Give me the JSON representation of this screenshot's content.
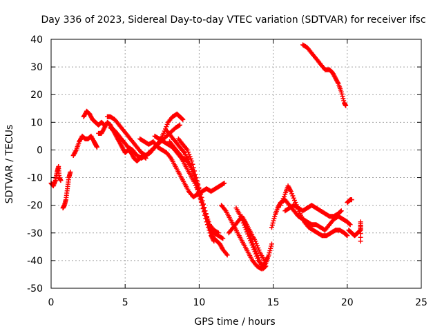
{
  "chart_data": {
    "type": "scatter",
    "title": "Day 336 of 2023, Sidereal Day-to-day VTEC variation (SDTVAR) for receiver ifsc",
    "xlabel": "GPS time / hours",
    "ylabel": "SDTVAR / TECUs",
    "xlim": [
      0,
      25
    ],
    "ylim": [
      -50,
      40
    ],
    "xticks": [
      0,
      5,
      10,
      15,
      20,
      25
    ],
    "yticks": [
      -50,
      -40,
      -30,
      -20,
      -10,
      0,
      10,
      20,
      30,
      40
    ],
    "grid": true,
    "marker": "+",
    "color": "#ff0000",
    "series": [
      {
        "name": "s01",
        "points": [
          [
            0.0,
            -12
          ],
          [
            0.15,
            -13
          ],
          [
            0.3,
            -11
          ],
          [
            0.4,
            -8
          ],
          [
            0.5,
            -6
          ],
          [
            0.55,
            -10
          ],
          [
            0.65,
            -11
          ]
        ]
      },
      {
        "name": "s02",
        "points": [
          [
            0.8,
            -21
          ],
          [
            0.9,
            -20
          ],
          [
            1.0,
            -18
          ],
          [
            1.1,
            -14
          ],
          [
            1.2,
            -10
          ],
          [
            1.3,
            -8
          ]
        ]
      },
      {
        "name": "s03",
        "points": [
          [
            1.5,
            -2
          ],
          [
            1.7,
            0
          ],
          [
            1.9,
            3
          ],
          [
            2.1,
            5
          ],
          [
            2.3,
            4
          ],
          [
            2.5,
            4
          ],
          [
            2.7,
            5
          ],
          [
            2.9,
            3
          ],
          [
            3.0,
            2
          ],
          [
            3.1,
            1
          ]
        ]
      },
      {
        "name": "s04",
        "points": [
          [
            2.2,
            12
          ],
          [
            2.4,
            14
          ],
          [
            2.6,
            13
          ],
          [
            2.8,
            11
          ],
          [
            3.0,
            10
          ],
          [
            3.2,
            9
          ],
          [
            3.4,
            10
          ],
          [
            3.6,
            9
          ]
        ]
      },
      {
        "name": "s05",
        "points": [
          [
            3.2,
            6
          ],
          [
            3.4,
            6
          ],
          [
            3.6,
            8
          ],
          [
            3.8,
            10
          ],
          [
            4.0,
            9
          ],
          [
            4.2,
            7
          ],
          [
            4.4,
            5
          ],
          [
            4.6,
            3
          ],
          [
            4.8,
            1
          ],
          [
            5.0,
            -1
          ],
          [
            5.2,
            0
          ],
          [
            5.4,
            -1
          ],
          [
            5.6,
            -3
          ],
          [
            5.8,
            -4
          ],
          [
            6.0,
            -3
          ],
          [
            6.2,
            -2
          ],
          [
            6.4,
            -3
          ]
        ]
      },
      {
        "name": "s06",
        "points": [
          [
            3.8,
            12
          ],
          [
            4.0,
            12
          ],
          [
            4.3,
            11
          ],
          [
            4.6,
            9
          ],
          [
            4.9,
            7
          ],
          [
            5.2,
            5
          ],
          [
            5.5,
            3
          ],
          [
            5.8,
            1
          ],
          [
            6.1,
            -1
          ],
          [
            6.4,
            -2
          ],
          [
            6.7,
            -1
          ],
          [
            7.0,
            1
          ],
          [
            7.3,
            3
          ],
          [
            7.6,
            6
          ],
          [
            7.9,
            10
          ],
          [
            8.2,
            12
          ],
          [
            8.5,
            13
          ],
          [
            8.7,
            12
          ],
          [
            8.9,
            11
          ]
        ]
      },
      {
        "name": "s07",
        "points": [
          [
            4.0,
            8
          ],
          [
            4.3,
            7
          ],
          [
            4.6,
            5
          ],
          [
            4.9,
            3
          ],
          [
            5.2,
            1
          ],
          [
            5.5,
            0
          ],
          [
            5.8,
            -2
          ],
          [
            6.1,
            -3
          ],
          [
            6.4,
            -2
          ],
          [
            6.8,
            0
          ],
          [
            7.2,
            2
          ],
          [
            7.6,
            4
          ],
          [
            8.0,
            6
          ],
          [
            8.4,
            8
          ],
          [
            8.7,
            9
          ]
        ]
      },
      {
        "name": "s08",
        "points": [
          [
            6.0,
            4
          ],
          [
            6.3,
            3
          ],
          [
            6.6,
            2
          ],
          [
            6.9,
            3
          ],
          [
            7.2,
            1
          ],
          [
            7.5,
            0
          ],
          [
            7.8,
            -1
          ],
          [
            8.1,
            -3
          ],
          [
            8.4,
            -6
          ],
          [
            8.7,
            -9
          ],
          [
            9.0,
            -12
          ],
          [
            9.3,
            -15
          ],
          [
            9.6,
            -17
          ],
          [
            9.9,
            -16
          ],
          [
            10.2,
            -15
          ],
          [
            10.5,
            -14
          ],
          [
            10.8,
            -15
          ],
          [
            11.1,
            -14
          ],
          [
            11.4,
            -13
          ],
          [
            11.7,
            -12
          ]
        ]
      },
      {
        "name": "s09",
        "points": [
          [
            7.0,
            5
          ],
          [
            7.3,
            4
          ],
          [
            7.6,
            3
          ],
          [
            7.9,
            2
          ],
          [
            8.2,
            1
          ],
          [
            8.5,
            -1
          ],
          [
            8.8,
            -3
          ],
          [
            9.1,
            -6
          ],
          [
            9.4,
            -9
          ],
          [
            9.7,
            -12
          ],
          [
            10.0,
            -16
          ],
          [
            10.3,
            -21
          ],
          [
            10.6,
            -26
          ],
          [
            10.8,
            -30
          ],
          [
            11.0,
            -32
          ],
          [
            11.2,
            -33
          ],
          [
            11.4,
            -34
          ],
          [
            11.6,
            -36
          ],
          [
            11.9,
            -38
          ]
        ]
      },
      {
        "name": "s10",
        "points": [
          [
            8.0,
            3
          ],
          [
            8.3,
            1
          ],
          [
            8.6,
            -1
          ],
          [
            8.9,
            -3
          ],
          [
            9.2,
            -4
          ],
          [
            9.5,
            -7
          ],
          [
            9.8,
            -11
          ],
          [
            10.1,
            -16
          ],
          [
            10.4,
            -22
          ],
          [
            10.7,
            -28
          ],
          [
            11.0,
            -30
          ],
          [
            11.3,
            -31
          ],
          [
            11.6,
            -32
          ]
        ]
      },
      {
        "name": "s11",
        "points": [
          [
            7.8,
            7
          ],
          [
            8.1,
            5
          ],
          [
            8.4,
            3
          ],
          [
            8.7,
            1
          ],
          [
            9.0,
            -1
          ],
          [
            9.3,
            -4
          ],
          [
            9.6,
            -8
          ],
          [
            9.9,
            -14
          ],
          [
            10.2,
            -20
          ],
          [
            10.5,
            -26
          ],
          [
            10.8,
            -31
          ],
          [
            11.0,
            -33
          ]
        ]
      },
      {
        "name": "s12",
        "points": [
          [
            8.6,
            4
          ],
          [
            8.9,
            2
          ],
          [
            9.2,
            0
          ],
          [
            9.5,
            -4
          ],
          [
            9.8,
            -10
          ],
          [
            10.1,
            -16
          ],
          [
            10.4,
            -22
          ],
          [
            10.7,
            -27
          ],
          [
            11.0,
            -29
          ],
          [
            11.3,
            -30
          ]
        ]
      },
      {
        "name": "s13",
        "points": [
          [
            11.5,
            -20
          ],
          [
            11.8,
            -22
          ],
          [
            12.1,
            -25
          ],
          [
            12.4,
            -28
          ],
          [
            12.7,
            -31
          ],
          [
            13.0,
            -34
          ],
          [
            13.3,
            -37
          ],
          [
            13.6,
            -40
          ],
          [
            13.9,
            -42
          ],
          [
            14.2,
            -43
          ],
          [
            14.5,
            -41
          ],
          [
            14.7,
            -38
          ],
          [
            14.9,
            -34
          ]
        ]
      },
      {
        "name": "s14",
        "points": [
          [
            12.5,
            -21
          ],
          [
            12.8,
            -24
          ],
          [
            13.1,
            -28
          ],
          [
            13.4,
            -32
          ],
          [
            13.7,
            -36
          ],
          [
            14.0,
            -40
          ],
          [
            14.3,
            -42
          ],
          [
            14.6,
            -39
          ]
        ]
      },
      {
        "name": "s15",
        "points": [
          [
            12.8,
            -24
          ],
          [
            13.1,
            -26
          ],
          [
            13.4,
            -30
          ],
          [
            13.7,
            -35
          ],
          [
            14.0,
            -39
          ],
          [
            14.3,
            -43
          ],
          [
            14.5,
            -42
          ]
        ]
      },
      {
        "name": "s16",
        "points": [
          [
            12.0,
            -30
          ],
          [
            12.3,
            -28
          ],
          [
            12.6,
            -26
          ],
          [
            12.9,
            -24
          ],
          [
            13.2,
            -27
          ],
          [
            13.5,
            -30
          ],
          [
            13.8,
            -33
          ],
          [
            14.1,
            -37
          ],
          [
            14.4,
            -40
          ]
        ]
      },
      {
        "name": "s17",
        "points": [
          [
            14.9,
            -28
          ],
          [
            15.1,
            -24
          ],
          [
            15.3,
            -21
          ],
          [
            15.5,
            -19
          ],
          [
            15.8,
            -18
          ],
          [
            16.1,
            -20
          ],
          [
            16.4,
            -22
          ],
          [
            16.7,
            -24
          ],
          [
            17.0,
            -25
          ],
          [
            17.3,
            -26
          ],
          [
            17.6,
            -27
          ],
          [
            17.9,
            -27
          ],
          [
            18.2,
            -28
          ],
          [
            18.5,
            -29
          ],
          [
            18.8,
            -27
          ],
          [
            19.1,
            -25
          ],
          [
            19.4,
            -24
          ],
          [
            19.7,
            -25
          ],
          [
            20.0,
            -26
          ],
          [
            20.2,
            -27
          ]
        ]
      },
      {
        "name": "s18",
        "points": [
          [
            15.5,
            -20
          ],
          [
            15.8,
            -16
          ],
          [
            16.0,
            -13
          ],
          [
            16.2,
            -15
          ],
          [
            16.5,
            -19
          ],
          [
            16.8,
            -23
          ],
          [
            17.1,
            -26
          ],
          [
            17.4,
            -28
          ],
          [
            17.7,
            -29
          ],
          [
            18.0,
            -30
          ],
          [
            18.3,
            -31
          ],
          [
            18.6,
            -31
          ],
          [
            18.9,
            -30
          ],
          [
            19.2,
            -29
          ],
          [
            19.5,
            -29
          ],
          [
            19.8,
            -30
          ],
          [
            20.0,
            -31
          ]
        ]
      },
      {
        "name": "s19",
        "points": [
          [
            15.8,
            -22
          ],
          [
            16.1,
            -21
          ],
          [
            16.4,
            -20
          ],
          [
            16.7,
            -21
          ],
          [
            17.0,
            -22
          ],
          [
            17.3,
            -21
          ],
          [
            17.6,
            -20
          ],
          [
            17.9,
            -21
          ],
          [
            18.2,
            -22
          ],
          [
            18.5,
            -23
          ],
          [
            18.8,
            -24
          ],
          [
            19.1,
            -24
          ],
          [
            19.4,
            -23
          ],
          [
            19.6,
            -22
          ]
        ]
      },
      {
        "name": "s20",
        "points": [
          [
            20.0,
            -19
          ],
          [
            20.2,
            -18
          ],
          [
            20.3,
            -18
          ]
        ]
      },
      {
        "name": "s21",
        "points": [
          [
            20.1,
            -29
          ],
          [
            20.3,
            -30
          ],
          [
            20.5,
            -31
          ],
          [
            20.7,
            -30
          ],
          [
            20.9,
            -29
          ],
          [
            20.9,
            -26
          ],
          [
            20.9,
            -33
          ]
        ]
      },
      {
        "name": "s22",
        "points": [
          [
            17.0,
            38
          ],
          [
            17.3,
            37
          ],
          [
            17.6,
            35
          ],
          [
            17.9,
            33
          ],
          [
            18.2,
            31
          ],
          [
            18.5,
            29
          ],
          [
            18.8,
            29
          ],
          [
            19.0,
            28
          ],
          [
            19.2,
            26
          ],
          [
            19.4,
            24
          ],
          [
            19.6,
            21
          ],
          [
            19.8,
            17
          ],
          [
            19.9,
            16
          ]
        ]
      }
    ]
  }
}
